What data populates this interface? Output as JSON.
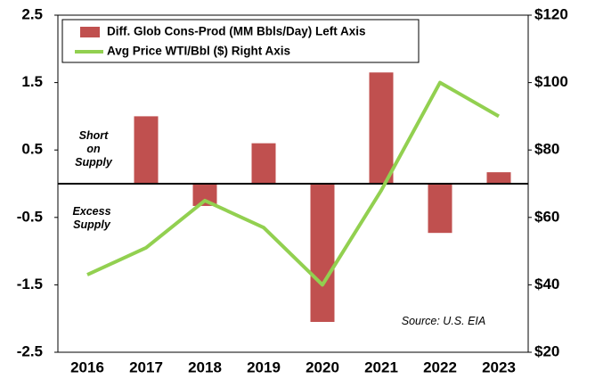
{
  "chart_data": {
    "type": "bar_line",
    "categories": [
      "2016",
      "2017",
      "2018",
      "2019",
      "2020",
      "2021",
      "2022",
      "2023"
    ],
    "series": [
      {
        "name": "Diff. Glob Cons-Prod (MM Bbls/Day) Left Axis",
        "type": "bar",
        "color": "#c0504f",
        "values": [
          0,
          1.0,
          -0.33,
          0.6,
          -2.05,
          1.65,
          -0.73,
          0.17
        ]
      },
      {
        "name": "Avg Price WTI/Bbl ($) Right Axis",
        "type": "line",
        "axis": "y2",
        "color": "#92d050",
        "values": [
          43,
          51,
          65,
          57,
          40,
          68,
          100,
          90
        ]
      }
    ],
    "ylim": [
      -2.5,
      2.5
    ],
    "yticks": [
      -2.5,
      -1.5,
      -0.5,
      0.5,
      1.5,
      2.5
    ],
    "y2lim": [
      20,
      120
    ],
    "y2ticks": [
      {
        "value": 20,
        "label": "$20"
      },
      {
        "value": 40,
        "label": "$40"
      },
      {
        "value": 60,
        "label": "$60"
      },
      {
        "value": 80,
        "label": "$80"
      },
      {
        "value": 100,
        "label": "$100"
      },
      {
        "value": 120,
        "label": "$120"
      }
    ],
    "annotations": [
      {
        "lines": [
          "Short",
          "on",
          "Supply"
        ]
      },
      {
        "lines": [
          "Excess",
          "Supply"
        ]
      },
      {
        "lines": [
          "Source: U.S. EIA"
        ]
      }
    ],
    "legend": "upper left",
    "grid": false
  }
}
